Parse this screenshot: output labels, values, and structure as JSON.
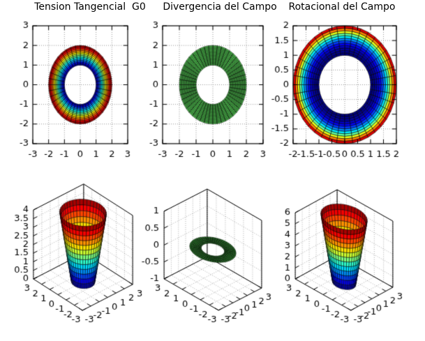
{
  "figure": {
    "background": "#ffffff",
    "style": "octave-figure",
    "grid_style": "dotted",
    "mesh_line_color": "#000000"
  },
  "chart_data": [
    {
      "type": "heatmap",
      "subtype": "annulus-mesh-pcolor-2d",
      "title": "Tension Tangencial  G0",
      "xlim": [
        -3,
        3
      ],
      "ylim": [
        -3,
        3
      ],
      "xticks": [
        "-3",
        "-2",
        "-1",
        "0",
        "1",
        "2",
        "3"
      ],
      "yticks": [
        "3",
        "2",
        "1",
        "0",
        "-1",
        "-2",
        "-3"
      ],
      "shape": "annulus",
      "r_inner": 1,
      "r_outer": 2,
      "radial_cells": 12,
      "angular_cells": 40,
      "colormap": "jet",
      "color_by": "radius: dark blue at r=1 to dark red at r=2",
      "value_exponent": 1,
      "grid": "on"
    },
    {
      "type": "heatmap",
      "subtype": "annulus-mesh-pcolor-2d",
      "title": "Divergencia del Campo",
      "xlim": [
        -3,
        3
      ],
      "ylim": [
        -3,
        3
      ],
      "xticks": [
        "-3",
        "-2",
        "-1",
        "0",
        "1",
        "2",
        "3"
      ],
      "yticks": [
        "3",
        "2",
        "1",
        "0",
        "-1",
        "-2",
        "-3"
      ],
      "shape": "annulus",
      "r_inner": 1,
      "r_outer": 2,
      "radial_cells": 14,
      "angular_cells": 48,
      "colormap": "solid",
      "fill_color": "#50c850",
      "color_by": "constant divergence (uniform green)",
      "grid": "on"
    },
    {
      "type": "heatmap",
      "subtype": "annulus-mesh-pcolor-2d",
      "title": "Rotacional del Campo",
      "xlim": [
        -2,
        2
      ],
      "ylim": [
        -2,
        2
      ],
      "xticks": [
        "-2",
        "-1.5",
        "-1",
        "-0.5",
        "0",
        "0.5",
        "1",
        "1.5",
        "2"
      ],
      "yticks": [
        "2",
        "1.5",
        "1",
        "0.5",
        "0",
        "-0.5",
        "-1",
        "-1.5",
        "-2"
      ],
      "shape": "annulus",
      "r_inner": 1,
      "r_outer": 2,
      "radial_cells": 12,
      "angular_cells": 40,
      "colormap": "jet",
      "color_by": "value grows toward outer edge: wide blue interior, red rim",
      "value_exponent": 2.2,
      "grid": "on"
    },
    {
      "type": "area",
      "subtype": "surface-3d-revolution",
      "title": "",
      "surface": "cup",
      "r_bottom": 1,
      "r_top": 2,
      "z_bottom": 0,
      "z_top": 4,
      "xlim": [
        -3,
        3
      ],
      "ylim": [
        -3,
        3
      ],
      "zlim": [
        0,
        4
      ],
      "xticks": [
        "3",
        "2",
        "1",
        "0",
        "-1",
        "-2",
        "-3"
      ],
      "yticks": [
        "-3",
        "-2",
        "-1",
        "0",
        "1",
        "2",
        "3"
      ],
      "zticks": [
        "0",
        "0.5",
        "1",
        "1.5",
        "2",
        "2.5",
        "3",
        "3.5",
        "4"
      ],
      "z_bands": 13,
      "angular_cells": 40,
      "colormap": "jet",
      "color_by": "z: dark blue bottom to dark red rim",
      "grid": "dotted-back-walls"
    },
    {
      "type": "area",
      "subtype": "surface-3d-revolution",
      "title": "",
      "surface": "flat-ring",
      "r_inner": 1,
      "r_outer": 2,
      "z": 0,
      "xlim": [
        -3,
        3
      ],
      "ylim": [
        -3,
        3
      ],
      "zlim": [
        -1,
        1
      ],
      "xticks": [
        "3",
        "2",
        "1",
        "0",
        "-1",
        "-2",
        "-3"
      ],
      "yticks": [
        "-3",
        "-2",
        "-1",
        "0",
        "1",
        "2",
        "3"
      ],
      "zticks": [
        "-1",
        "-0.5",
        "0",
        "0.5",
        "1"
      ],
      "radial_cells": 7,
      "angular_cells": 56,
      "colormap": "solid",
      "fill_color": "#2f8f2f",
      "color_by": "flat dark green ring at z=0",
      "grid": "dotted-back-walls"
    },
    {
      "type": "area",
      "subtype": "surface-3d-revolution",
      "title": "",
      "surface": "cup",
      "r_bottom": 1,
      "r_top": 2,
      "z_bottom": 0,
      "z_top": 6,
      "xlim": [
        -3,
        3
      ],
      "ylim": [
        -3,
        3
      ],
      "zlim": [
        0,
        6
      ],
      "xticks": [
        "3",
        "2",
        "1",
        "0",
        "-1",
        "-2",
        "-3"
      ],
      "yticks": [
        "-3",
        "-2",
        "-1",
        "0",
        "1",
        "2",
        "3"
      ],
      "zticks": [
        "0",
        "1",
        "2",
        "3",
        "4",
        "5",
        "6"
      ],
      "z_bands": 13,
      "angular_cells": 40,
      "colormap": "jet",
      "color_by": "z: dark blue bottom to dark red rim",
      "grid": "dotted-back-walls"
    }
  ]
}
